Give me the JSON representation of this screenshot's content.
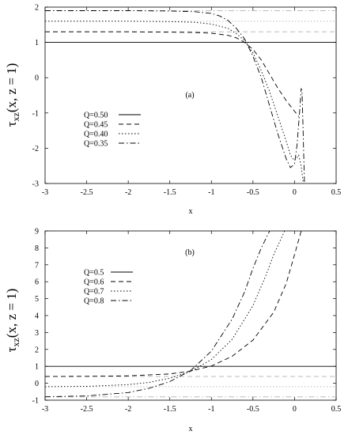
{
  "chart_data": [
    {
      "type": "line",
      "panel_label": "(a)",
      "xlabel": "x",
      "ylabel": {
        "main": "τ",
        "sub": "xz",
        "arg": "(x, z = 1)"
      },
      "xlim": [
        -3,
        0.5
      ],
      "ylim": [
        -3,
        2
      ],
      "xticks": [
        "-3",
        "-2.5",
        "-2",
        "-1.5",
        "-1",
        "-0.5",
        "0",
        "0.5"
      ],
      "yticks": [
        "-3",
        "-2",
        "-1",
        "0",
        "1",
        "2"
      ],
      "grid": false,
      "legend_position": "middle-left",
      "series": [
        {
          "name": "Q=0.50",
          "style": "solid",
          "x": [
            -3,
            0.5
          ],
          "y": [
            1,
            1
          ]
        },
        {
          "name": "Q=0.45",
          "style": "dashed",
          "x": [
            -3,
            -2.5,
            -2,
            -1.5,
            -1.2,
            -1.0,
            -0.8,
            -0.7,
            -0.6,
            -0.5,
            -0.4,
            -0.3,
            -0.2,
            -0.1,
            0,
            0.05
          ],
          "y": [
            1.3,
            1.3,
            1.3,
            1.29,
            1.28,
            1.26,
            1.2,
            1.13,
            1.0,
            0.8,
            0.5,
            0.1,
            -0.3,
            -0.65,
            -0.95,
            -1.1
          ]
        },
        {
          "name": "Q=0.40",
          "style": "dotted",
          "x": [
            -3,
            -2.5,
            -2,
            -1.5,
            -1.2,
            -1.0,
            -0.8,
            -0.7,
            -0.6,
            -0.5,
            -0.4,
            -0.3,
            -0.2,
            -0.1,
            -0.05,
            0,
            0.05,
            0.08,
            0.1,
            0.11
          ],
          "y": [
            1.6,
            1.6,
            1.6,
            1.59,
            1.57,
            1.52,
            1.4,
            1.25,
            1.05,
            0.7,
            0.2,
            -0.4,
            -1.1,
            -1.8,
            -2.2,
            -2.35,
            -2.2,
            -2.5,
            -2.9,
            -3.0
          ]
        },
        {
          "name": "Q=0.35",
          "style": "dashdot",
          "x": [
            -3,
            -2.5,
            -2,
            -1.5,
            -1.2,
            -1.0,
            -0.9,
            -0.8,
            -0.7,
            -0.6,
            -0.5,
            -0.4,
            -0.3,
            -0.2,
            -0.1,
            -0.05,
            0,
            0.03,
            0.06,
            0.08,
            0.09,
            0.1,
            0.11,
            0.12
          ],
          "y": [
            1.9,
            1.9,
            1.9,
            1.89,
            1.87,
            1.82,
            1.75,
            1.62,
            1.4,
            1.1,
            0.6,
            0.0,
            -0.8,
            -1.6,
            -2.3,
            -2.55,
            -2.45,
            -1.9,
            -1.0,
            -0.3,
            -0.4,
            -1.2,
            -2.2,
            -3.0
          ]
        }
      ],
      "asymptote_color": "#bbbbbb",
      "asymptotes": [
        {
          "y": 1.9,
          "style": "dashdot"
        },
        {
          "y": 1.6,
          "style": "dotted"
        },
        {
          "y": 1.3,
          "style": "dashed"
        }
      ]
    },
    {
      "type": "line",
      "panel_label": "(b)",
      "xlabel": "x",
      "ylabel": {
        "main": "τ",
        "sub": "xz",
        "arg": "(x, z = 1)"
      },
      "xlim": [
        -3,
        0.5
      ],
      "ylim": [
        -1,
        9
      ],
      "xticks": [
        "-3",
        "-2.5",
        "-2",
        "-1.5",
        "-1",
        "-0.5",
        "0",
        "0.5"
      ],
      "yticks": [
        "-1",
        "0",
        "1",
        "2",
        "3",
        "4",
        "5",
        "6",
        "7",
        "8",
        "9"
      ],
      "grid": false,
      "legend_position": "top-left",
      "series": [
        {
          "name": "Q=0.5",
          "style": "solid",
          "x": [
            -3,
            0.5
          ],
          "y": [
            1,
            1
          ]
        },
        {
          "name": "Q=0.6",
          "style": "dashed",
          "x": [
            -3,
            -2.5,
            -2,
            -1.5,
            -1.25,
            -1.0,
            -0.75,
            -0.5,
            -0.25,
            -0.1,
            0,
            0.08
          ],
          "y": [
            0.4,
            0.41,
            0.44,
            0.55,
            0.72,
            1.02,
            1.6,
            2.55,
            4.2,
            5.9,
            7.6,
            9
          ]
        },
        {
          "name": "Q=0.7",
          "style": "dotted",
          "x": [
            -3,
            -2.5,
            -2,
            -1.75,
            -1.5,
            -1.25,
            -1.0,
            -0.75,
            -0.5,
            -0.35,
            -0.25,
            -0.12
          ],
          "y": [
            -0.2,
            -0.18,
            -0.08,
            0.05,
            0.3,
            0.7,
            1.4,
            2.6,
            4.6,
            6.3,
            7.6,
            9
          ]
        },
        {
          "name": "Q=0.8",
          "style": "dashdot",
          "x": [
            -3,
            -2.5,
            -2,
            -1.75,
            -1.5,
            -1.25,
            -1.0,
            -0.75,
            -0.6,
            -0.5,
            -0.4,
            -0.3
          ],
          "y": [
            -0.8,
            -0.75,
            -0.55,
            -0.3,
            0.1,
            0.75,
            1.9,
            3.8,
            5.4,
            6.8,
            8.0,
            9
          ]
        }
      ],
      "asymptote_color": "#bbbbbb",
      "asymptotes": [
        {
          "y": 0.4,
          "style": "dashed"
        },
        {
          "y": -0.2,
          "style": "dotted"
        },
        {
          "y": -0.8,
          "style": "dashdot"
        }
      ]
    }
  ]
}
